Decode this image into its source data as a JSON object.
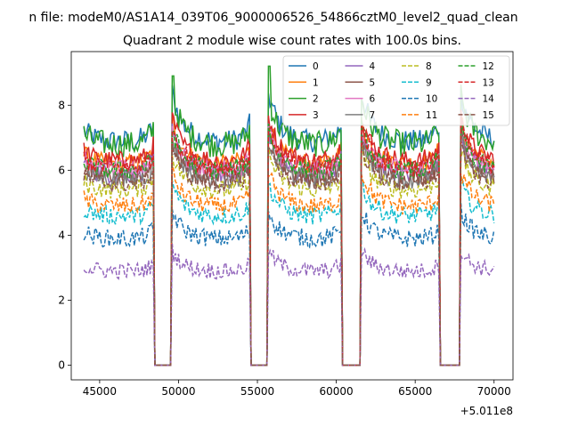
{
  "chart_data": {
    "type": "line",
    "suptitle": "n file: modeM0/AS1A14_039T06_9000006526_54866cztM0_level2_quad_clean",
    "title": "Quadrant 2 module wise count rates with 100.0s bins.",
    "xlabel": "",
    "ylabel": "",
    "x_offset_label": "+5.011e8",
    "xlim": [
      43200,
      71200
    ],
    "ylim": [
      -0.45,
      9.65
    ],
    "x_range": [
      44000,
      70000
    ],
    "bin_seconds": 100,
    "x_ticks": [
      {
        "value": 45000,
        "label": "45000"
      },
      {
        "value": 50000,
        "label": "50000"
      },
      {
        "value": 55000,
        "label": "55000"
      },
      {
        "value": 60000,
        "label": "60000"
      },
      {
        "value": 65000,
        "label": "65000"
      },
      {
        "value": 70000,
        "label": "70000"
      }
    ],
    "y_ticks": [
      {
        "value": 0,
        "label": "0"
      },
      {
        "value": 2,
        "label": "2"
      },
      {
        "value": 4,
        "label": "4"
      },
      {
        "value": 6,
        "label": "6"
      },
      {
        "value": 8,
        "label": "8"
      }
    ],
    "gaps": [
      [
        48500,
        49500
      ],
      [
        54600,
        55600
      ],
      [
        60400,
        61500
      ],
      [
        66600,
        67800
      ]
    ],
    "legend": {
      "placement": "upper right",
      "columns": 4
    },
    "series": [
      {
        "name": "0",
        "color": "#1f77b4",
        "style": "solid",
        "level": 6.9,
        "noise": 0.35
      },
      {
        "name": "1",
        "color": "#ff7f0e",
        "style": "solid",
        "level": 6.2,
        "noise": 0.3
      },
      {
        "name": "2",
        "color": "#2ca02c",
        "style": "solid",
        "level": 6.8,
        "noise": 0.4
      },
      {
        "name": "3",
        "color": "#d62728",
        "style": "solid",
        "level": 6.3,
        "noise": 0.3
      },
      {
        "name": "4",
        "color": "#9467bd",
        "style": "solid",
        "level": 5.9,
        "noise": 0.3
      },
      {
        "name": "5",
        "color": "#8c564b",
        "style": "solid",
        "level": 5.8,
        "noise": 0.3
      },
      {
        "name": "6",
        "color": "#e377c2",
        "style": "solid",
        "level": 6.0,
        "noise": 0.3
      },
      {
        "name": "7",
        "color": "#7f7f7f",
        "style": "solid",
        "level": 5.7,
        "noise": 0.28
      },
      {
        "name": "8",
        "color": "#bcbd22",
        "style": "dashed",
        "level": 5.4,
        "noise": 0.28
      },
      {
        "name": "9",
        "color": "#17becf",
        "style": "dashed",
        "level": 4.6,
        "noise": 0.28
      },
      {
        "name": "10",
        "color": "#1f77b4",
        "style": "dashed",
        "level": 3.9,
        "noise": 0.28
      },
      {
        "name": "11",
        "color": "#ff7f0e",
        "style": "dashed",
        "level": 4.9,
        "noise": 0.28
      },
      {
        "name": "12",
        "color": "#2ca02c",
        "style": "dashed",
        "level": 6.0,
        "noise": 0.3
      },
      {
        "name": "13",
        "color": "#d62728",
        "style": "dashed",
        "level": 6.1,
        "noise": 0.3
      },
      {
        "name": "14",
        "color": "#9467bd",
        "style": "dashed",
        "level": 2.9,
        "noise": 0.25
      },
      {
        "name": "15",
        "color": "#8c564b",
        "style": "dashed",
        "level": 5.6,
        "noise": 0.28
      }
    ]
  }
}
